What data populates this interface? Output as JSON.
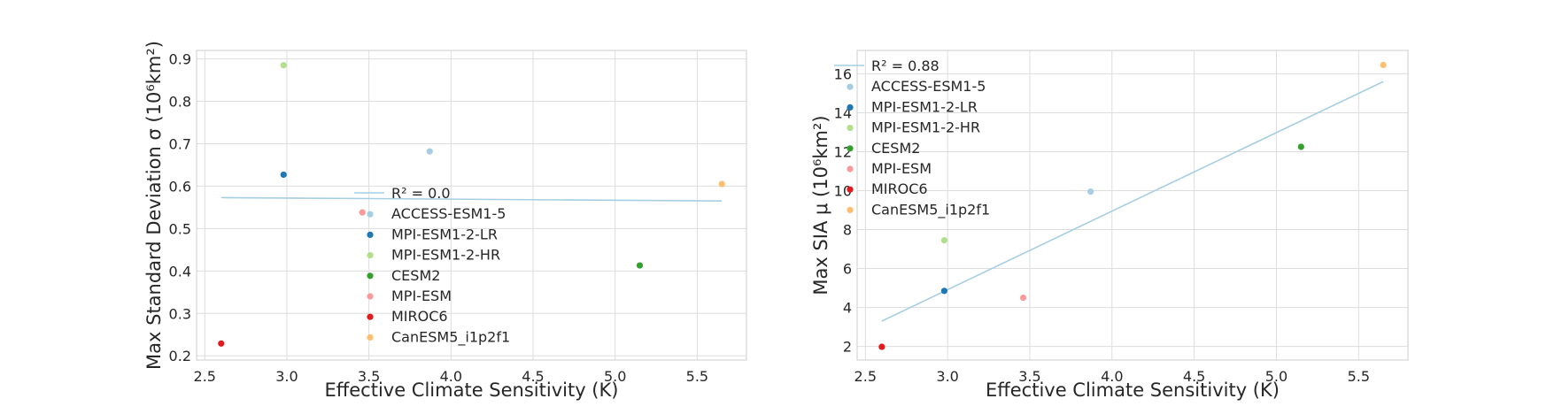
{
  "chart_data": [
    {
      "type": "scatter",
      "xlabel": "Effective Climate Sensitivity (K)",
      "ylabel": "Max Standard Deviation σ (10⁶km²)",
      "xlim": [
        2.45,
        5.8
      ],
      "ylim": [
        0.19,
        0.92
      ],
      "xticks": [
        "2.5",
        "3.0",
        "3.5",
        "4.0",
        "4.5",
        "5.0",
        "5.5"
      ],
      "yticks": [
        "0.2",
        "0.3",
        "0.4",
        "0.5",
        "0.6",
        "0.7",
        "0.8",
        "0.9"
      ],
      "grid": true,
      "legend_placement": "lower-center",
      "fit_label": "R² = 0.0",
      "fit": {
        "x": [
          2.6,
          5.65
        ],
        "y": [
          0.573,
          0.565
        ],
        "color": "#a6cee3"
      },
      "series": [
        {
          "name": "ACCESS-ESM1-5",
          "x": 3.87,
          "y": 0.682,
          "color": "#a6cee3"
        },
        {
          "name": "MPI-ESM1-2-LR",
          "x": 2.98,
          "y": 0.627,
          "color": "#1f78b4"
        },
        {
          "name": "MPI-ESM1-2-HR",
          "x": 2.98,
          "y": 0.885,
          "color": "#b2df8a"
        },
        {
          "name": "CESM2",
          "x": 5.15,
          "y": 0.413,
          "color": "#33a02c"
        },
        {
          "name": "MPI-ESM",
          "x": 3.46,
          "y": 0.538,
          "color": "#fb9a99"
        },
        {
          "name": "MIROC6",
          "x": 2.6,
          "y": 0.229,
          "color": "#e31a1c"
        },
        {
          "name": "CanESM5_i1p2f1",
          "x": 5.65,
          "y": 0.605,
          "color": "#fdbf6f"
        }
      ]
    },
    {
      "type": "scatter",
      "xlabel": "Effective Climate Sensitivity (K)",
      "ylabel": "Max SIA μ (10⁶km²)",
      "xlim": [
        2.45,
        5.8
      ],
      "ylim": [
        1.3,
        17.2
      ],
      "xticks": [
        "2.5",
        "3.0",
        "3.5",
        "4.0",
        "4.5",
        "5.0",
        "5.5"
      ],
      "yticks": [
        "2",
        "4",
        "6",
        "8",
        "10",
        "12",
        "14",
        "16"
      ],
      "grid": true,
      "legend_placement": "upper-left",
      "fit_label": "R² = 0.88",
      "fit": {
        "x": [
          2.6,
          5.65
        ],
        "y": [
          3.3,
          15.6
        ],
        "color": "#a6cee3"
      },
      "series": [
        {
          "name": "ACCESS-ESM1-5",
          "x": 3.87,
          "y": 9.95,
          "color": "#a6cee3"
        },
        {
          "name": "MPI-ESM1-2-LR",
          "x": 2.98,
          "y": 4.85,
          "color": "#1f78b4"
        },
        {
          "name": "MPI-ESM1-2-HR",
          "x": 2.98,
          "y": 7.45,
          "color": "#b2df8a"
        },
        {
          "name": "CESM2",
          "x": 5.15,
          "y": 12.25,
          "color": "#33a02c"
        },
        {
          "name": "MPI-ESM",
          "x": 3.46,
          "y": 4.5,
          "color": "#fb9a99"
        },
        {
          "name": "MIROC6",
          "x": 2.6,
          "y": 1.98,
          "color": "#e31a1c"
        },
        {
          "name": "CanESM5_i1p2f1",
          "x": 5.65,
          "y": 16.45,
          "color": "#fdbf6f"
        }
      ]
    }
  ]
}
